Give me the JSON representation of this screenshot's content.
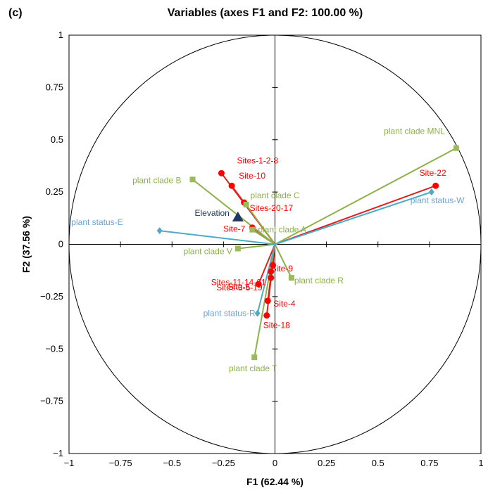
{
  "panel_label": "(c)",
  "chart_data": {
    "type": "scatter",
    "title": "Variables (axes F1 and F2: 100.00 %)",
    "xlabel": "F1 (62.44 %)",
    "ylabel": "F2 (37.56 %)",
    "xlim": [
      -1,
      1
    ],
    "ylim": [
      -1,
      1
    ],
    "xticks": [
      "−1",
      "−0.75",
      "−0.5",
      "−0.25",
      "0",
      "0.25",
      "0.5",
      "0.75",
      "1"
    ],
    "yticks": [
      "−1",
      "−0.75",
      "−0.5",
      "−0.25",
      "0",
      "0.25",
      "0.5",
      "0.75",
      "1"
    ],
    "correlation_circle": true,
    "colors": {
      "site": "#ff0000",
      "site_line": "#e02020",
      "clade": "#8db04a",
      "clade_marker": "#9bbb59",
      "status": "#4bacc6",
      "status_text": "#6ba3d6",
      "elevation": "#1f3864"
    },
    "series": [
      {
        "name": "sites",
        "marker": "circle",
        "color_key": "site",
        "points": [
          {
            "label": "Sites-1-2-8",
            "x": -0.26,
            "y": 0.34
          },
          {
            "label": "Site-10",
            "x": -0.21,
            "y": 0.28
          },
          {
            "label": "Sites-20-17",
            "x": -0.15,
            "y": 0.2
          },
          {
            "label": "Site-7",
            "x": -0.11,
            "y": 0.08
          },
          {
            "label": "Site-22",
            "x": 0.78,
            "y": 0.28
          },
          {
            "label": "Sites-11-14-21",
            "x": -0.01,
            "y": -0.1
          },
          {
            "label": "Site-9",
            "x": -0.02,
            "y": -0.13
          },
          {
            "label": "Sites-3-5-19",
            "x": -0.02,
            "y": -0.16
          },
          {
            "label": "Site-6",
            "x": -0.08,
            "y": -0.19
          },
          {
            "label": "Site-4",
            "x": -0.035,
            "y": -0.27
          },
          {
            "label": "Site-18",
            "x": -0.04,
            "y": -0.34
          }
        ]
      },
      {
        "name": "plant clades",
        "marker": "square",
        "color_key": "clade",
        "points": [
          {
            "label": "plant clade MNL",
            "x": 0.88,
            "y": 0.46
          },
          {
            "label": "plant clade B",
            "x": -0.4,
            "y": 0.31
          },
          {
            "label": "plant clade C",
            "x": -0.14,
            "y": 0.19
          },
          {
            "label": "plant clade A",
            "x": -0.11,
            "y": 0.07
          },
          {
            "label": "plant clade V",
            "x": -0.18,
            "y": -0.02
          },
          {
            "label": "plant clade R",
            "x": 0.08,
            "y": -0.16
          },
          {
            "label": "plant clade T",
            "x": -0.1,
            "y": -0.54
          }
        ]
      },
      {
        "name": "plant status",
        "marker": "diamond",
        "color_key": "status",
        "points": [
          {
            "label": "plant status-W",
            "x": 0.76,
            "y": 0.25
          },
          {
            "label": "plant status-E",
            "x": -0.56,
            "y": 0.065
          },
          {
            "label": "plant status-R",
            "x": -0.085,
            "y": -0.33
          }
        ]
      },
      {
        "name": "elevation",
        "marker": "triangle",
        "color_key": "elevation",
        "points": [
          {
            "label": "Elevation",
            "x": -0.18,
            "y": 0.13
          }
        ]
      }
    ]
  }
}
